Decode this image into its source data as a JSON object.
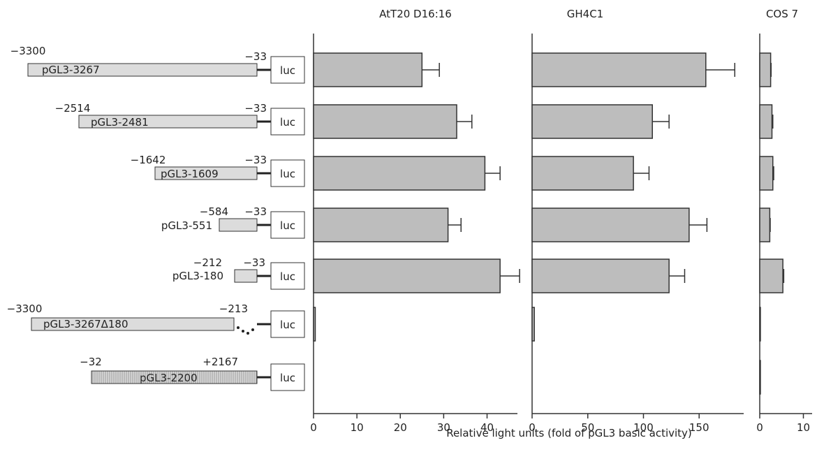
{
  "chart_data": {
    "type": "bar",
    "orientation": "horizontal",
    "xlabel": "Relative light units (fold of pGL3 basic activity)",
    "constructs": [
      {
        "name": "pGL3-3267",
        "start": "−3300",
        "end": "−33",
        "luc": "luc"
      },
      {
        "name": "pGL3-2481",
        "start": "−2514",
        "end": "−33",
        "luc": "luc"
      },
      {
        "name": "pGL3-1609",
        "start": "−1642",
        "end": "−33",
        "luc": "luc"
      },
      {
        "name": "pGL3-551",
        "start": "−584",
        "end": "−33",
        "luc": "luc"
      },
      {
        "name": "pGL3-180",
        "start": "−212",
        "end": "−33",
        "luc": "luc"
      },
      {
        "name": "pGL3-3267Δ180",
        "start": "−3300",
        "end": "−213",
        "luc": "luc"
      },
      {
        "name": "pGL3-2200",
        "start": "−32",
        "end": "+2167",
        "luc": "luc"
      }
    ],
    "panels": [
      {
        "title": "AtT20 D16:16",
        "xlim": [
          0,
          47
        ],
        "ticks": [
          0,
          10,
          20,
          30,
          40
        ],
        "values": [
          25,
          33,
          39.5,
          31,
          43,
          0.4,
          0
        ],
        "errors": [
          4,
          3.5,
          3.5,
          3,
          4.5,
          0,
          0
        ]
      },
      {
        "title": "GH4C1",
        "xlim": [
          0,
          190
        ],
        "ticks": [
          0,
          50,
          100,
          150
        ],
        "values": [
          156,
          108,
          91,
          141,
          123,
          2,
          0
        ],
        "errors": [
          26,
          15,
          14,
          16,
          14,
          0,
          0
        ]
      },
      {
        "title": "COS 7",
        "xlim": [
          0,
          12
        ],
        "ticks": [
          0,
          10
        ],
        "values": [
          2.5,
          2.8,
          3.0,
          2.3,
          5.3,
          0.15,
          0.15
        ],
        "errors": [
          0.1,
          0.2,
          0.2,
          0.1,
          0.2,
          0,
          0
        ]
      }
    ]
  }
}
